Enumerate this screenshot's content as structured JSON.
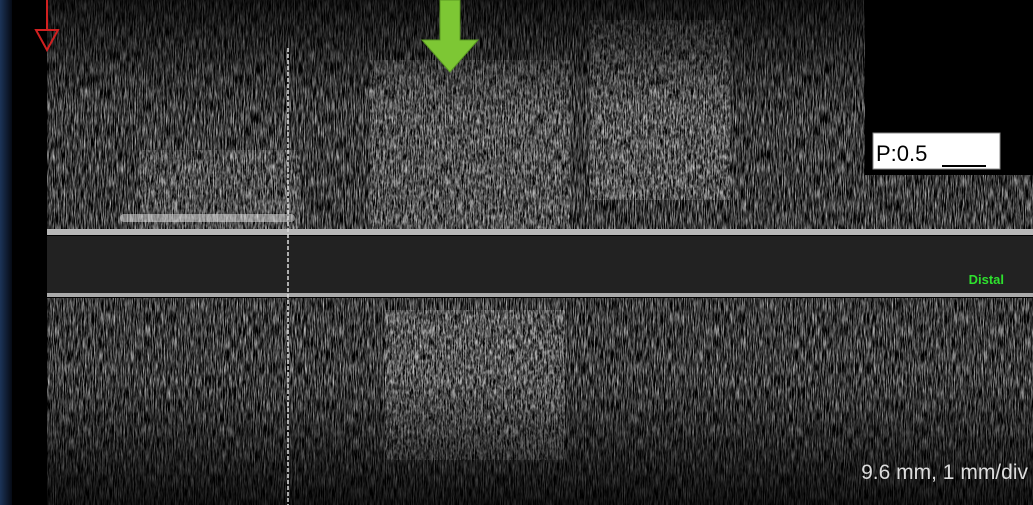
{
  "pressure_label": "P:0.5",
  "direction_label": "Distal",
  "scale_label": "9.6 mm, 1 mm/div"
}
